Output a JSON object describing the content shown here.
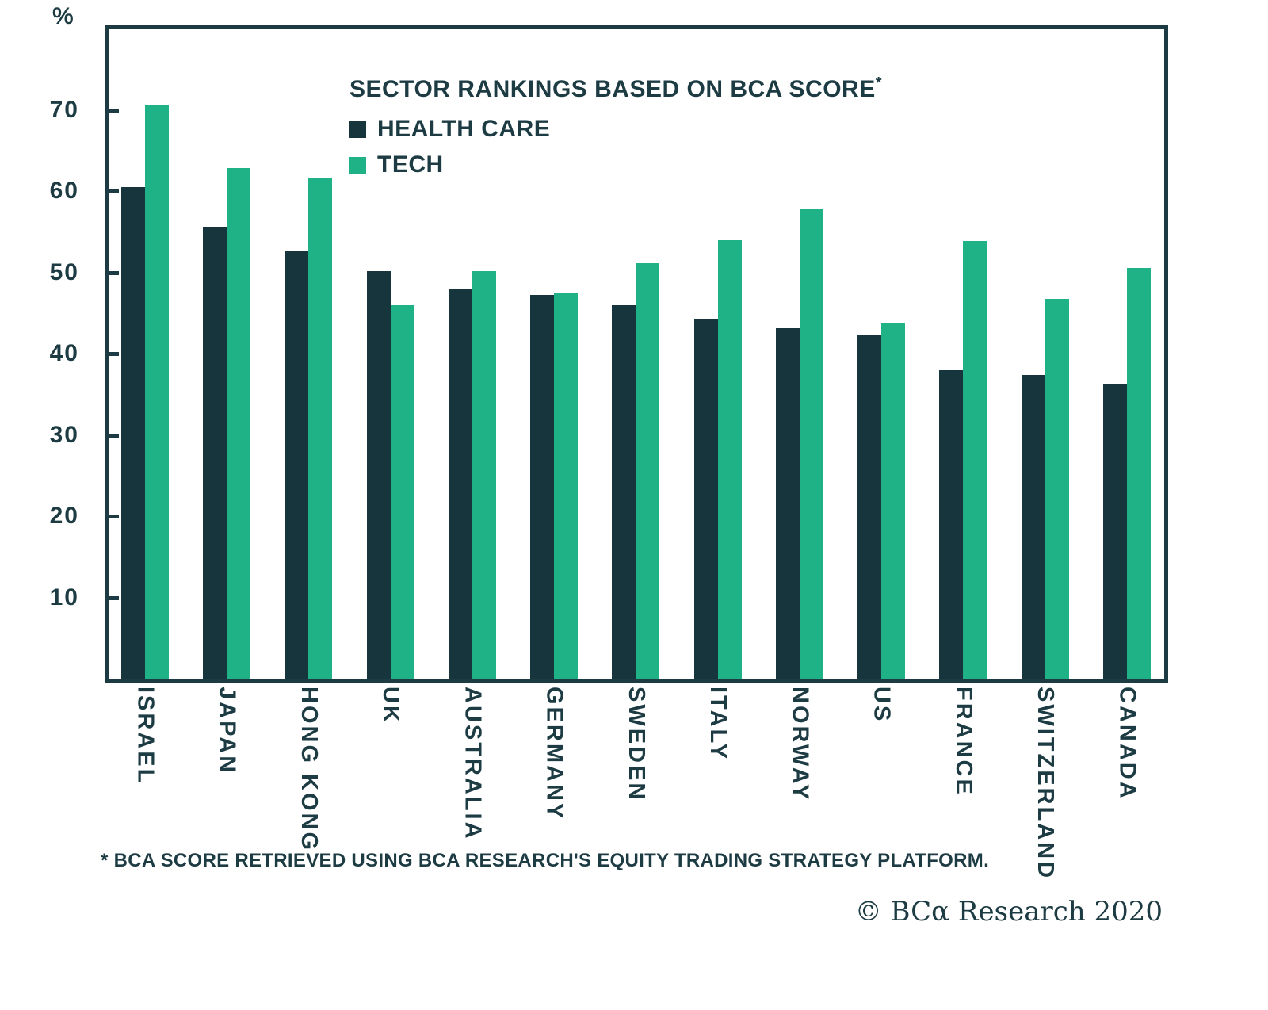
{
  "chart_data": {
    "type": "bar",
    "title": "SECTOR RANKINGS BASED ON BCA SCORE",
    "title_superscript": "*",
    "ylabel": "%",
    "ylim": [
      0,
      80
    ],
    "yticks": [
      10,
      20,
      30,
      40,
      50,
      60,
      70
    ],
    "grid": false,
    "legend_position": "top-center-inside",
    "categories": [
      "ISRAEL",
      "JAPAN",
      "HONG KONG",
      "UK",
      "AUSTRALIA",
      "GERMANY",
      "SWEDEN",
      "ITALY",
      "NORWAY",
      "US",
      "FRANCE",
      "SWITZERLAND",
      "CANADA"
    ],
    "series": [
      {
        "name": "HEALTH CARE",
        "color": "#17353d",
        "values": [
          60.5,
          55.6,
          52.6,
          50.1,
          48.0,
          47.2,
          46.0,
          44.3,
          43.1,
          42.2,
          38.0,
          37.4,
          36.3
        ]
      },
      {
        "name": "TECH",
        "color": "#1fb287",
        "values": [
          70.5,
          62.8,
          61.7,
          46.0,
          50.1,
          47.5,
          51.1,
          54.0,
          57.8,
          43.7,
          53.9,
          46.7,
          50.5
        ]
      }
    ],
    "footnote": "* BCA SCORE RETRIEVED USING BCA RESEARCH'S EQUITY TRADING STRATEGY PLATFORM.",
    "attribution": "© BCα Research 2020"
  },
  "colors": {
    "background": "#ffffff",
    "axis": "#1d3b43",
    "text": "#1d3b43",
    "health_care_bar": "#17353d",
    "tech_bar": "#1fb287"
  }
}
